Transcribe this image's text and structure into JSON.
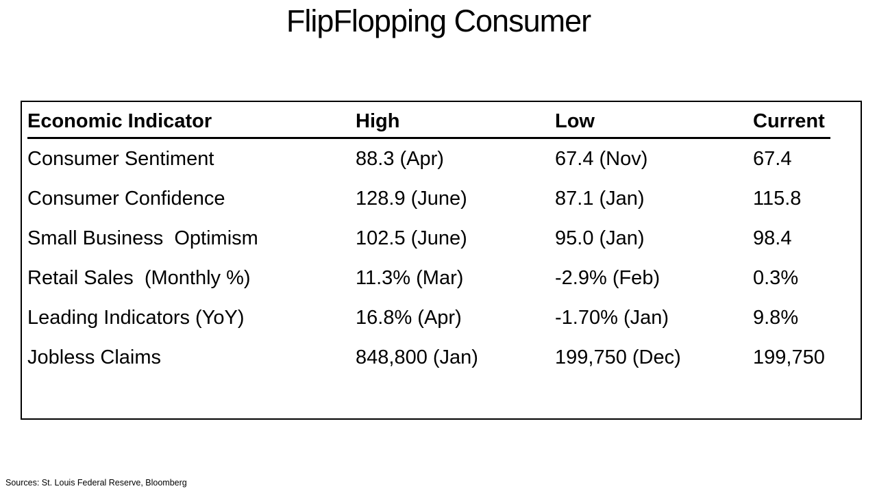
{
  "title": "FlipFlopping Consumer",
  "table": {
    "headers": {
      "indicator": "Economic Indicator",
      "high": "High",
      "low": "Low",
      "current": "Current"
    },
    "rows": [
      {
        "indicator": "Consumer Sentiment",
        "high": "88.3 (Apr)",
        "low": "67.4 (Nov)",
        "current": "67.4"
      },
      {
        "indicator": "Consumer Confidence",
        "high": "128.9 (June)",
        "low": "87.1 (Jan)",
        "current": "115.8"
      },
      {
        "indicator": "Small Business  Optimism",
        "high": "102.5 (June)",
        "low": "95.0 (Jan)",
        "current": "98.4"
      },
      {
        "indicator": "Retail Sales  (Monthly %)",
        "high": "11.3% (Mar)",
        "low": "-2.9% (Feb)",
        "current": "0.3%"
      },
      {
        "indicator": "Leading Indicators (YoY)",
        "high": "16.8% (Apr)",
        "low": "-1.70% (Jan)",
        "current": "9.8%"
      },
      {
        "indicator": "Jobless Claims",
        "high": "848,800 (Jan)",
        "low": "199,750 (Dec)",
        "current": "199,750"
      }
    ]
  },
  "source": "Sources: St. Louis Federal Reserve, Bloomberg",
  "colors": {
    "text": "#000000",
    "background": "#ffffff",
    "border": "#000000"
  }
}
